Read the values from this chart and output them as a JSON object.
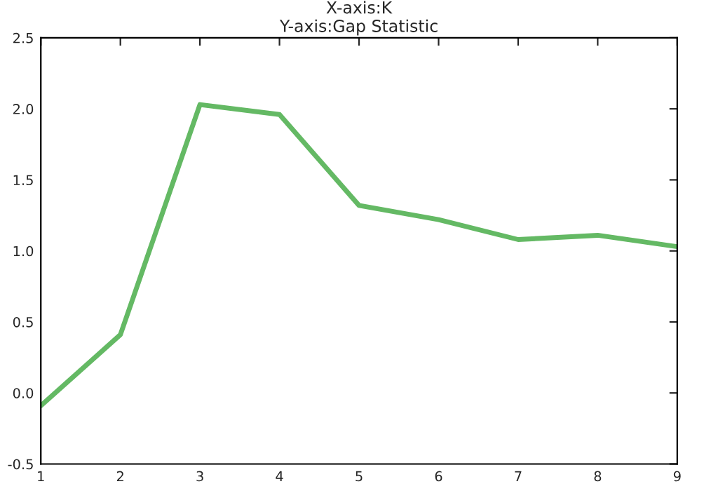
{
  "chart_data": {
    "type": "line",
    "title": "X-axis:K\nY-axis:Gap Statistic",
    "x": [
      1,
      2,
      3,
      4,
      5,
      6,
      7,
      8,
      9
    ],
    "series": [
      {
        "color": "#64b964",
        "values": [
          -0.09,
          0.41,
          2.03,
          1.96,
          1.32,
          1.22,
          1.08,
          1.11,
          1.03
        ]
      }
    ],
    "xlim": [
      1,
      9
    ],
    "xticks": [
      1,
      2,
      3,
      4,
      5,
      6,
      7,
      8,
      9
    ],
    "ylim": [
      -0.5,
      2.5
    ],
    "yticks": [
      -0.5,
      {
        "value": 0,
        "label": "0.0"
      },
      0.5,
      {
        "value": 1,
        "label": "1.0"
      },
      1.5,
      {
        "value": 2,
        "label": "2.0"
      },
      2.5
    ],
    "grid": false,
    "marker": "none",
    "line_style": "solid"
  }
}
